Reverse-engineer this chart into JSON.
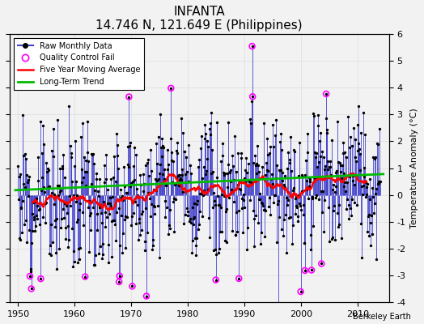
{
  "title": "INFANTA",
  "subtitle": "14.746 N, 121.649 E (Philippines)",
  "ylabel": "Temperature Anomaly (°C)",
  "xlabel_note": "Berkeley Earth",
  "xlim": [
    1948.5,
    2015.5
  ],
  "ylim": [
    -4,
    6
  ],
  "yticks": [
    -4,
    -3,
    -2,
    -1,
    0,
    1,
    2,
    3,
    4,
    5,
    6
  ],
  "xticks": [
    1950,
    1960,
    1970,
    1980,
    1990,
    2000,
    2010
  ],
  "year_start": 1950,
  "year_end": 2014,
  "seed": 12,
  "background_color": "#f2f2f2",
  "stem_color": "#4444cc",
  "dot_color": "#000000",
  "qc_color": "#ff00ff",
  "ma_color": "#ff0000",
  "trend_color": "#00bb00",
  "grid_color": "#dddddd",
  "stem_lw": 0.6,
  "ma_lw": 1.8,
  "trend_lw": 2.0,
  "dot_size": 2.0,
  "qc_size": 7.0,
  "n_qc": 20,
  "amplitude": 1.3,
  "seasonal_amp": 0.3,
  "trend_slope": 0.008,
  "trend_intercept": 0.15,
  "ma_window": 60
}
